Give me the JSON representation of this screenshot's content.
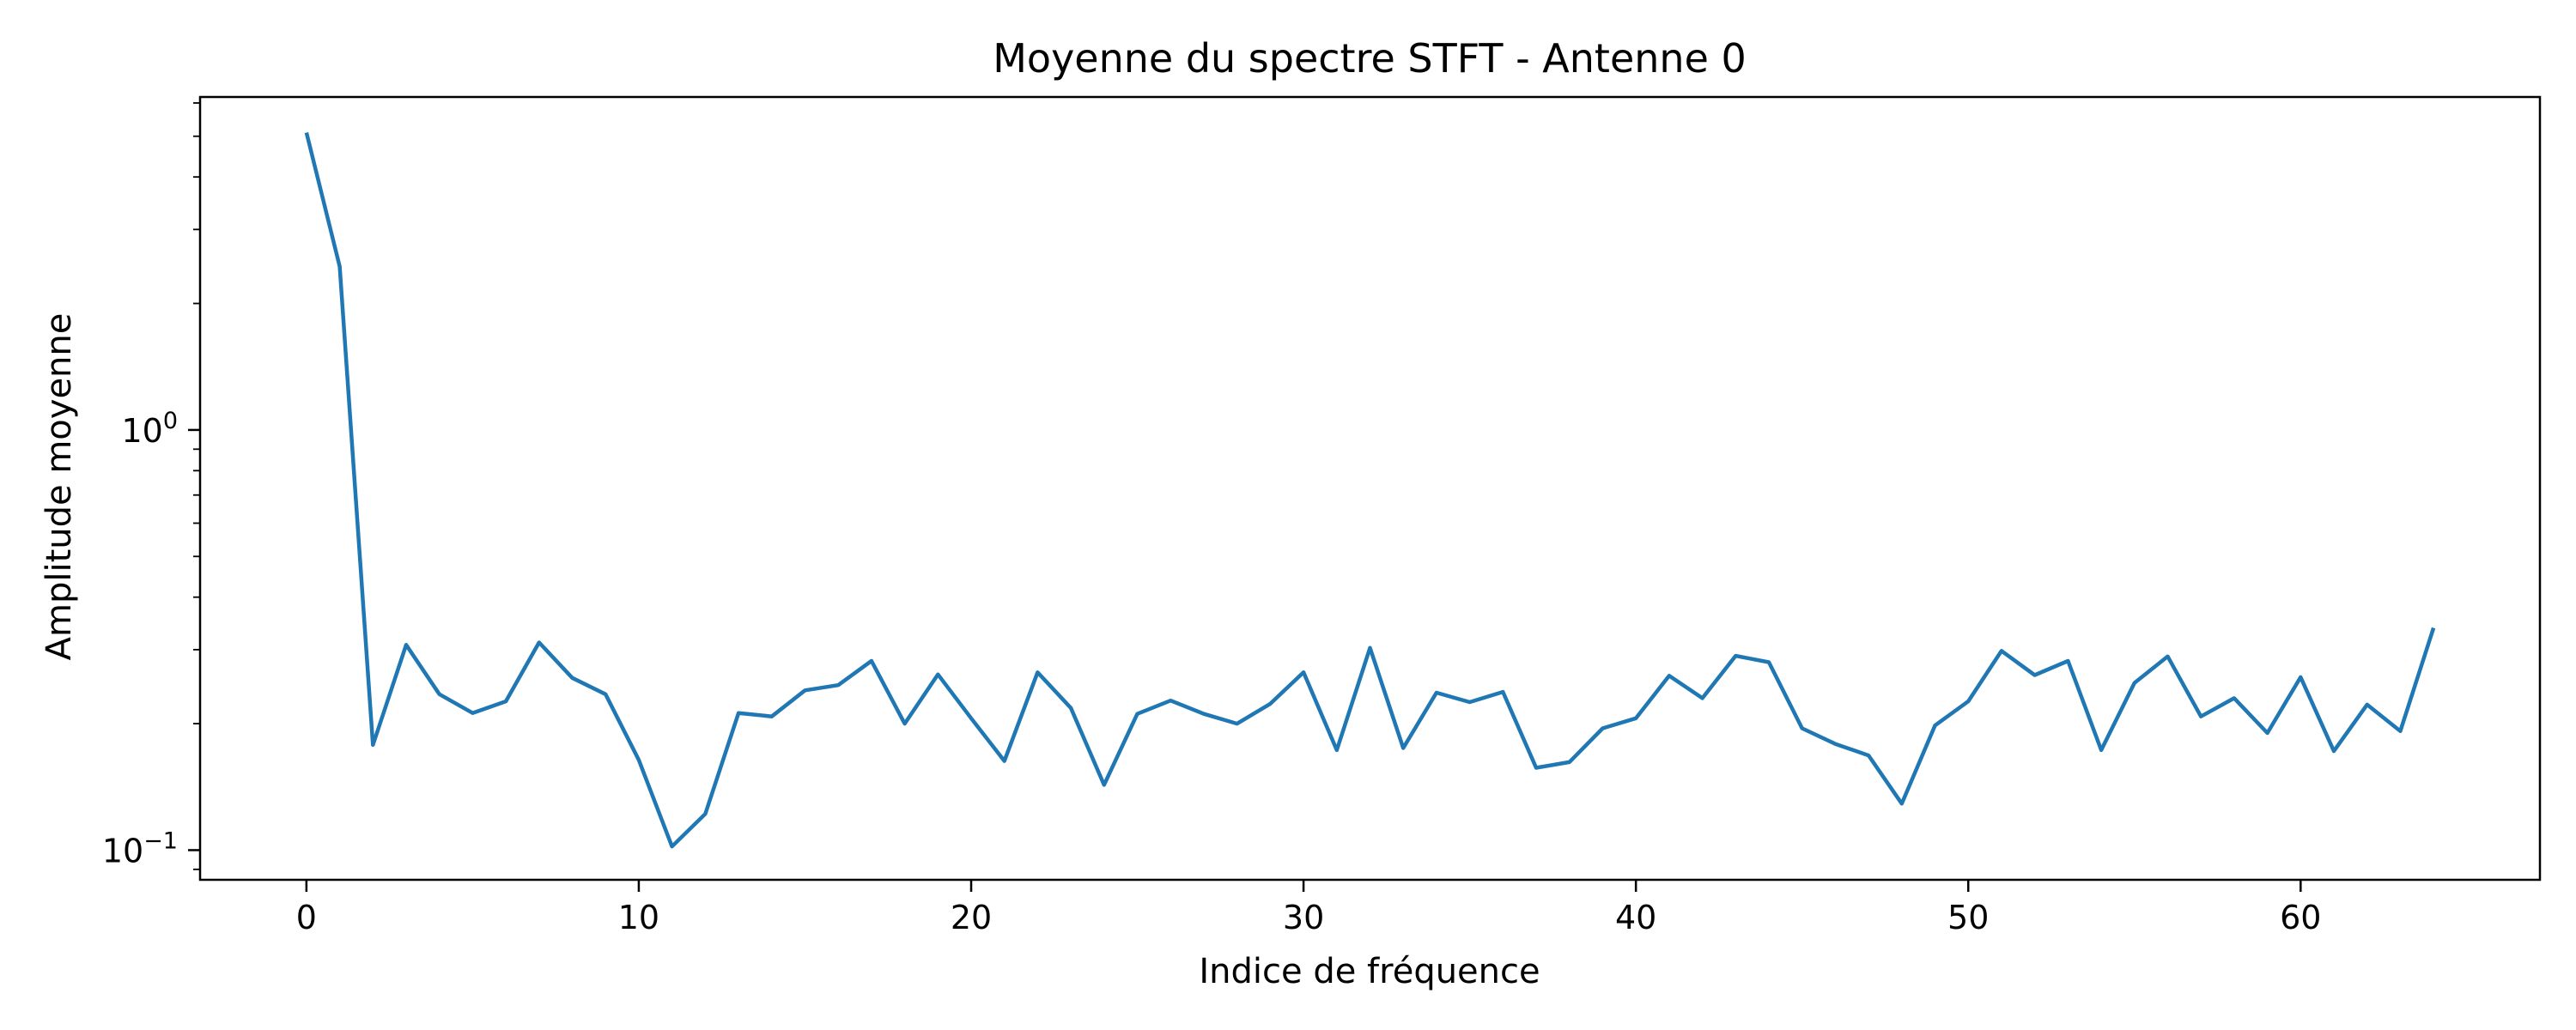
{
  "chart_data": {
    "type": "line",
    "title": "Moyenne du spectre STFT - Antenne 0",
    "xlabel": "Indice de fréquence",
    "ylabel": "Amplitude moyenne",
    "yscale": "log",
    "xlim": [
      -3.2,
      67.2
    ],
    "ylim": [
      0.085,
      6.2
    ],
    "grid": false,
    "x_ticks": [
      {
        "value": 0,
        "label": "0"
      },
      {
        "value": 10,
        "label": "10"
      },
      {
        "value": 20,
        "label": "20"
      },
      {
        "value": 30,
        "label": "30"
      },
      {
        "value": 40,
        "label": "40"
      },
      {
        "value": 50,
        "label": "50"
      },
      {
        "value": 60,
        "label": "60"
      }
    ],
    "y_ticks": [
      {
        "value": 0.1,
        "base": "10",
        "exp": "−1"
      },
      {
        "value": 1,
        "base": "10",
        "exp": "0"
      }
    ],
    "y_minor_ticks": [
      0.09,
      0.2,
      0.3,
      0.4,
      0.5,
      0.6,
      0.7,
      0.8,
      0.9,
      2,
      3,
      4,
      5,
      6
    ],
    "color": "#1f77b4",
    "series": [
      {
        "x": [
          0,
          1,
          2,
          3,
          4,
          5,
          6,
          7,
          8,
          9,
          10,
          11,
          12,
          13,
          14,
          15,
          16,
          17,
          18,
          19,
          20,
          21,
          22,
          23,
          24,
          25,
          26,
          27,
          28,
          29,
          30,
          31,
          32,
          33,
          34,
          35,
          36,
          37,
          38,
          39,
          40,
          41,
          42,
          43,
          44,
          45,
          46,
          47,
          48,
          49,
          50,
          51,
          52,
          53,
          54,
          55,
          56,
          57,
          58,
          59,
          60,
          61,
          62,
          63,
          64
        ],
        "values": [
          5.1,
          2.45,
          0.178,
          0.308,
          0.235,
          0.212,
          0.226,
          0.312,
          0.257,
          0.235,
          0.164,
          0.102,
          0.122,
          0.212,
          0.208,
          0.24,
          0.247,
          0.282,
          0.2,
          0.262,
          0.206,
          0.163,
          0.265,
          0.218,
          0.143,
          0.211,
          0.227,
          0.211,
          0.2,
          0.223,
          0.265,
          0.173,
          0.303,
          0.175,
          0.237,
          0.225,
          0.238,
          0.157,
          0.162,
          0.195,
          0.206,
          0.26,
          0.23,
          0.29,
          0.28,
          0.195,
          0.179,
          0.168,
          0.129,
          0.198,
          0.226,
          0.298,
          0.261,
          0.282,
          0.173,
          0.25,
          0.289,
          0.208,
          0.23,
          0.19,
          0.258,
          0.172,
          0.222,
          0.192,
          0.338
        ]
      }
    ]
  }
}
